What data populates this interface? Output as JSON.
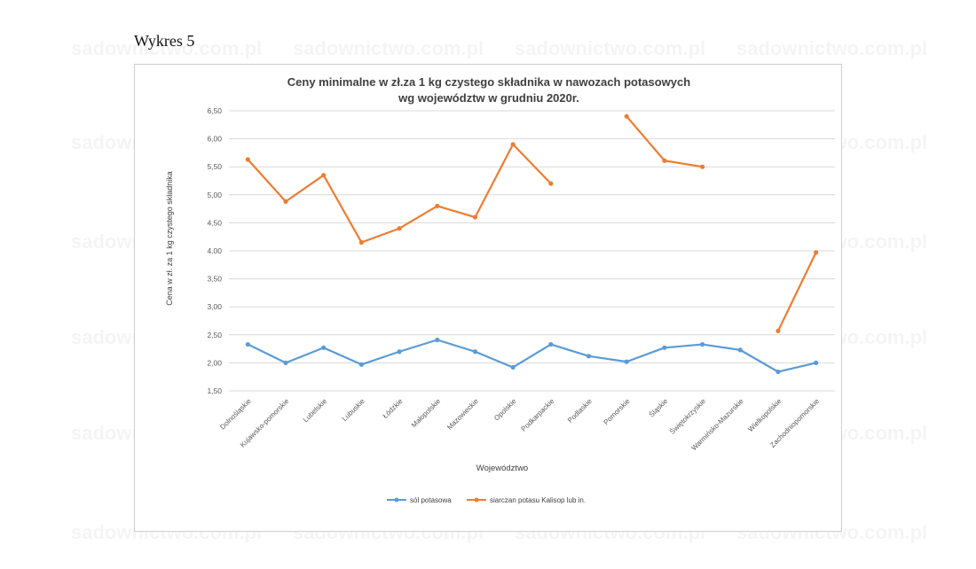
{
  "page": {
    "caption": "Wykres 5",
    "watermark": "sadownictwo.com.pl"
  },
  "chart_data": {
    "type": "line",
    "title_line1": "Ceny minimalne w zł.za 1 kg czystego składnika w nawozach potasowych",
    "title_line2": "wg województw w grudniu 2020r.",
    "xlabel": "Województwo",
    "ylabel": "Cena w zł. za 1 kg czystego składnika",
    "ylim": [
      1.5,
      6.5
    ],
    "yticks": [
      "1,50",
      "2,00",
      "2,50",
      "3,00",
      "3,50",
      "4,00",
      "4,50",
      "5,00",
      "5,50",
      "6,00",
      "6,50"
    ],
    "grid": true,
    "legend_position": "bottom",
    "categories": [
      "Dolnośląskie",
      "Kujawsko-pomorskie",
      "Lubelskie",
      "Lubuskie",
      "Łódzkie",
      "Małopolskie",
      "Mazowieckie",
      "Opolskie",
      "Podkarpackie",
      "Podlaskie",
      "Pomorskie",
      "Śląskie",
      "Świętokrzyskie",
      "Warmińsko-Mazurskie",
      "Wielkopolskie",
      "Zachodniopomorskie"
    ],
    "series": [
      {
        "name": "sól potasowa",
        "color": "#5b9bd5",
        "values": [
          2.33,
          2.0,
          2.27,
          1.97,
          2.2,
          2.41,
          2.2,
          1.92,
          2.33,
          2.12,
          2.02,
          2.27,
          2.33,
          2.23,
          1.84,
          2.0
        ]
      },
      {
        "name": "siarczan potasu Kalisop lub in.",
        "color": "#ed7d31",
        "values": [
          5.63,
          4.88,
          5.35,
          4.15,
          4.4,
          4.8,
          4.6,
          5.9,
          5.2,
          null,
          6.4,
          5.61,
          5.5,
          null,
          2.57,
          3.97
        ]
      }
    ]
  }
}
